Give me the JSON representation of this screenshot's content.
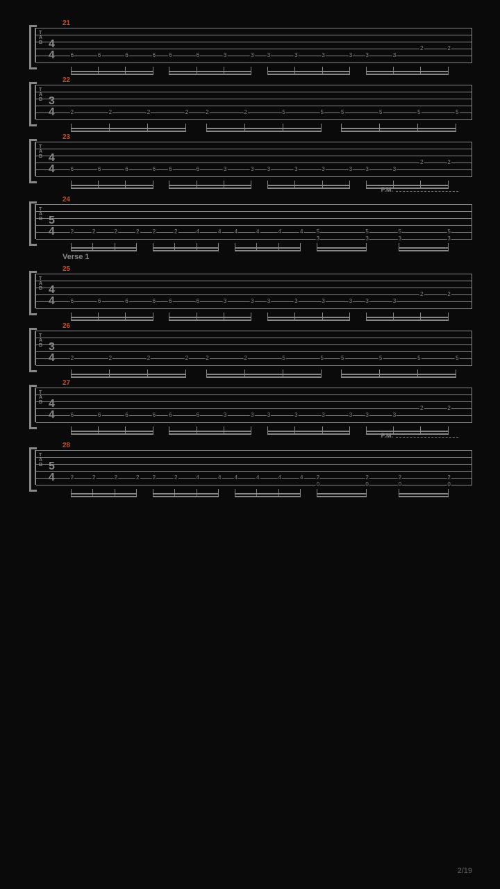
{
  "page_number": "2/19",
  "section_label": "Verse 1",
  "pm_label": "P.M.",
  "colors": {
    "bg": "#0a0a0a",
    "staff": "#888888",
    "measure_num": "#d24a1a",
    "text": "#888888"
  },
  "tab_label_lines": [
    "T",
    "A",
    "B"
  ],
  "string_positions": [
    0,
    10,
    20,
    30,
    40,
    50
  ],
  "measures": [
    {
      "number": "21",
      "time_sig_top": "4",
      "time_sig_bot": "4",
      "section": null,
      "pm": false,
      "groups": [
        {
          "x_start": 0.02,
          "x_end": 0.22,
          "count": 4,
          "beams": 2,
          "notes": [
            {
              "string": 4,
              "fret": "6"
            },
            {
              "string": 4,
              "fret": "6"
            },
            {
              "string": 4,
              "fret": "6"
            },
            {
              "string": 4,
              "fret": "6"
            }
          ]
        },
        {
          "x_start": 0.26,
          "x_end": 0.46,
          "count": 4,
          "beams": 2,
          "notes": [
            {
              "string": 4,
              "fret": "6"
            },
            {
              "string": 4,
              "fret": "6"
            },
            {
              "string": 4,
              "fret": "3"
            },
            {
              "string": 4,
              "fret": "3"
            }
          ]
        },
        {
          "x_start": 0.5,
          "x_end": 0.7,
          "count": 4,
          "beams": 2,
          "notes": [
            {
              "string": 4,
              "fret": "3"
            },
            {
              "string": 4,
              "fret": "3"
            },
            {
              "string": 4,
              "fret": "3"
            },
            {
              "string": 4,
              "fret": "3"
            }
          ]
        },
        {
          "x_start": 0.74,
          "x_end": 0.94,
          "count": 4,
          "beams": 2,
          "notes": [
            {
              "string": 4,
              "fret": "3"
            },
            {
              "string": 4,
              "fret": "3"
            },
            {
              "string": 3,
              "fret": "2"
            },
            {
              "string": 3,
              "fret": "2"
            }
          ]
        }
      ]
    },
    {
      "number": "22",
      "time_sig_top": "3",
      "time_sig_bot": "4",
      "section": null,
      "pm": false,
      "groups": [
        {
          "x_start": 0.02,
          "x_end": 0.3,
          "count": 4,
          "beams": 2,
          "notes": [
            {
              "string": 4,
              "fret": "2"
            },
            {
              "string": 4,
              "fret": "2"
            },
            {
              "string": 4,
              "fret": "2"
            },
            {
              "string": 4,
              "fret": "2"
            }
          ]
        },
        {
          "x_start": 0.35,
          "x_end": 0.63,
          "count": 4,
          "beams": 2,
          "notes": [
            {
              "string": 4,
              "fret": "2"
            },
            {
              "string": 4,
              "fret": "2"
            },
            {
              "string": 4,
              "fret": "5"
            },
            {
              "string": 4,
              "fret": "5"
            }
          ]
        },
        {
          "x_start": 0.68,
          "x_end": 0.96,
          "count": 4,
          "beams": 2,
          "notes": [
            {
              "string": 4,
              "fret": "5"
            },
            {
              "string": 4,
              "fret": "5"
            },
            {
              "string": 4,
              "fret": "5"
            },
            {
              "string": 4,
              "fret": "5"
            }
          ]
        }
      ]
    },
    {
      "number": "23",
      "time_sig_top": "4",
      "time_sig_bot": "4",
      "section": null,
      "pm": false,
      "groups": [
        {
          "x_start": 0.02,
          "x_end": 0.22,
          "count": 4,
          "beams": 2,
          "notes": [
            {
              "string": 4,
              "fret": "6"
            },
            {
              "string": 4,
              "fret": "6"
            },
            {
              "string": 4,
              "fret": "6"
            },
            {
              "string": 4,
              "fret": "6"
            }
          ]
        },
        {
          "x_start": 0.26,
          "x_end": 0.46,
          "count": 4,
          "beams": 2,
          "notes": [
            {
              "string": 4,
              "fret": "6"
            },
            {
              "string": 4,
              "fret": "6"
            },
            {
              "string": 4,
              "fret": "3"
            },
            {
              "string": 4,
              "fret": "3"
            }
          ]
        },
        {
          "x_start": 0.5,
          "x_end": 0.7,
          "count": 4,
          "beams": 2,
          "notes": [
            {
              "string": 4,
              "fret": "3"
            },
            {
              "string": 4,
              "fret": "3"
            },
            {
              "string": 4,
              "fret": "3"
            },
            {
              "string": 4,
              "fret": "3"
            }
          ]
        },
        {
          "x_start": 0.74,
          "x_end": 0.94,
          "count": 4,
          "beams": 2,
          "notes": [
            {
              "string": 4,
              "fret": "3"
            },
            {
              "string": 4,
              "fret": "3"
            },
            {
              "string": 3,
              "fret": "2"
            },
            {
              "string": 3,
              "fret": "2"
            }
          ]
        }
      ]
    },
    {
      "number": "24",
      "time_sig_top": "5",
      "time_sig_bot": "4",
      "section": null,
      "pm": true,
      "groups": [
        {
          "x_start": 0.02,
          "x_end": 0.18,
          "count": 4,
          "beams": 2,
          "notes": [
            {
              "string": 4,
              "fret": "2"
            },
            {
              "string": 4,
              "fret": "2"
            },
            {
              "string": 4,
              "fret": "2"
            },
            {
              "string": 4,
              "fret": "2"
            }
          ]
        },
        {
          "x_start": 0.22,
          "x_end": 0.38,
          "count": 4,
          "beams": 2,
          "notes": [
            {
              "string": 4,
              "fret": "2"
            },
            {
              "string": 4,
              "fret": "2"
            },
            {
              "string": 4,
              "fret": "4"
            },
            {
              "string": 4,
              "fret": "4"
            }
          ]
        },
        {
          "x_start": 0.42,
          "x_end": 0.58,
          "count": 4,
          "beams": 2,
          "notes": [
            {
              "string": 4,
              "fret": "4"
            },
            {
              "string": 4,
              "fret": "4"
            },
            {
              "string": 4,
              "fret": "4"
            },
            {
              "string": 4,
              "fret": "4"
            }
          ]
        },
        {
          "x_start": 0.62,
          "x_end": 0.74,
          "count": 2,
          "beams": 2,
          "notes": [
            {
              "string": 4,
              "frets": [
                "5",
                "3"
              ]
            },
            {
              "string": 4,
              "frets": [
                "5",
                "3"
              ]
            }
          ]
        },
        {
          "x_start": 0.82,
          "x_end": 0.94,
          "count": 2,
          "beams": 2,
          "notes": [
            {
              "string": 4,
              "frets": [
                "5",
                "3"
              ]
            },
            {
              "string": 4,
              "frets": [
                "5",
                "3"
              ]
            }
          ]
        }
      ]
    },
    {
      "number": "25",
      "time_sig_top": "4",
      "time_sig_bot": "4",
      "section": "Verse 1",
      "pm": false,
      "groups": [
        {
          "x_start": 0.02,
          "x_end": 0.22,
          "count": 4,
          "beams": 2,
          "notes": [
            {
              "string": 4,
              "fret": "6"
            },
            {
              "string": 4,
              "fret": "6"
            },
            {
              "string": 4,
              "fret": "6"
            },
            {
              "string": 4,
              "fret": "6"
            }
          ]
        },
        {
          "x_start": 0.26,
          "x_end": 0.46,
          "count": 4,
          "beams": 2,
          "notes": [
            {
              "string": 4,
              "fret": "6"
            },
            {
              "string": 4,
              "fret": "6"
            },
            {
              "string": 4,
              "fret": "3"
            },
            {
              "string": 4,
              "fret": "3"
            }
          ]
        },
        {
          "x_start": 0.5,
          "x_end": 0.7,
          "count": 4,
          "beams": 2,
          "notes": [
            {
              "string": 4,
              "fret": "3"
            },
            {
              "string": 4,
              "fret": "3"
            },
            {
              "string": 4,
              "fret": "3"
            },
            {
              "string": 4,
              "fret": "3"
            }
          ]
        },
        {
          "x_start": 0.74,
          "x_end": 0.94,
          "count": 4,
          "beams": 2,
          "notes": [
            {
              "string": 4,
              "fret": "3"
            },
            {
              "string": 4,
              "fret": "3"
            },
            {
              "string": 3,
              "fret": "2"
            },
            {
              "string": 3,
              "fret": "2"
            }
          ]
        }
      ]
    },
    {
      "number": "26",
      "time_sig_top": "3",
      "time_sig_bot": "4",
      "section": null,
      "pm": false,
      "groups": [
        {
          "x_start": 0.02,
          "x_end": 0.3,
          "count": 4,
          "beams": 2,
          "notes": [
            {
              "string": 4,
              "fret": "2"
            },
            {
              "string": 4,
              "fret": "2"
            },
            {
              "string": 4,
              "fret": "2"
            },
            {
              "string": 4,
              "fret": "2"
            }
          ]
        },
        {
          "x_start": 0.35,
          "x_end": 0.63,
          "count": 4,
          "beams": 2,
          "notes": [
            {
              "string": 4,
              "fret": "2"
            },
            {
              "string": 4,
              "fret": "2"
            },
            {
              "string": 4,
              "fret": "5"
            },
            {
              "string": 4,
              "fret": "5"
            }
          ]
        },
        {
          "x_start": 0.68,
          "x_end": 0.96,
          "count": 4,
          "beams": 2,
          "notes": [
            {
              "string": 4,
              "fret": "5"
            },
            {
              "string": 4,
              "fret": "5"
            },
            {
              "string": 4,
              "fret": "5"
            },
            {
              "string": 4,
              "fret": "5"
            }
          ]
        }
      ]
    },
    {
      "number": "27",
      "time_sig_top": "4",
      "time_sig_bot": "4",
      "section": null,
      "pm": false,
      "groups": [
        {
          "x_start": 0.02,
          "x_end": 0.22,
          "count": 4,
          "beams": 2,
          "notes": [
            {
              "string": 4,
              "fret": "6"
            },
            {
              "string": 4,
              "fret": "6"
            },
            {
              "string": 4,
              "fret": "6"
            },
            {
              "string": 4,
              "fret": "6"
            }
          ]
        },
        {
          "x_start": 0.26,
          "x_end": 0.46,
          "count": 4,
          "beams": 2,
          "notes": [
            {
              "string": 4,
              "fret": "6"
            },
            {
              "string": 4,
              "fret": "6"
            },
            {
              "string": 4,
              "fret": "3"
            },
            {
              "string": 4,
              "fret": "3"
            }
          ]
        },
        {
          "x_start": 0.5,
          "x_end": 0.7,
          "count": 4,
          "beams": 2,
          "notes": [
            {
              "string": 4,
              "fret": "3"
            },
            {
              "string": 4,
              "fret": "3"
            },
            {
              "string": 4,
              "fret": "3"
            },
            {
              "string": 4,
              "fret": "3"
            }
          ]
        },
        {
          "x_start": 0.74,
          "x_end": 0.94,
          "count": 4,
          "beams": 2,
          "notes": [
            {
              "string": 4,
              "fret": "3"
            },
            {
              "string": 4,
              "fret": "3"
            },
            {
              "string": 3,
              "fret": "2"
            },
            {
              "string": 3,
              "fret": "2"
            }
          ]
        }
      ]
    },
    {
      "number": "28",
      "time_sig_top": "5",
      "time_sig_bot": "4",
      "section": null,
      "pm": true,
      "groups": [
        {
          "x_start": 0.02,
          "x_end": 0.18,
          "count": 4,
          "beams": 2,
          "notes": [
            {
              "string": 4,
              "fret": "2"
            },
            {
              "string": 4,
              "fret": "2"
            },
            {
              "string": 4,
              "fret": "2"
            },
            {
              "string": 4,
              "fret": "2"
            }
          ]
        },
        {
          "x_start": 0.22,
          "x_end": 0.38,
          "count": 4,
          "beams": 2,
          "notes": [
            {
              "string": 4,
              "fret": "2"
            },
            {
              "string": 4,
              "fret": "2"
            },
            {
              "string": 4,
              "fret": "4"
            },
            {
              "string": 4,
              "fret": "4"
            }
          ]
        },
        {
          "x_start": 0.42,
          "x_end": 0.58,
          "count": 4,
          "beams": 2,
          "notes": [
            {
              "string": 4,
              "fret": "4"
            },
            {
              "string": 4,
              "fret": "4"
            },
            {
              "string": 4,
              "fret": "4"
            },
            {
              "string": 4,
              "fret": "4"
            }
          ]
        },
        {
          "x_start": 0.62,
          "x_end": 0.74,
          "count": 2,
          "beams": 2,
          "notes": [
            {
              "string": 4,
              "frets": [
                "2",
                "0"
              ]
            },
            {
              "string": 4,
              "frets": [
                "2",
                "0"
              ]
            }
          ]
        },
        {
          "x_start": 0.82,
          "x_end": 0.94,
          "count": 2,
          "beams": 2,
          "notes": [
            {
              "string": 4,
              "frets": [
                "2",
                "0"
              ]
            },
            {
              "string": 4,
              "frets": [
                "2",
                "0"
              ]
            }
          ]
        }
      ]
    }
  ]
}
